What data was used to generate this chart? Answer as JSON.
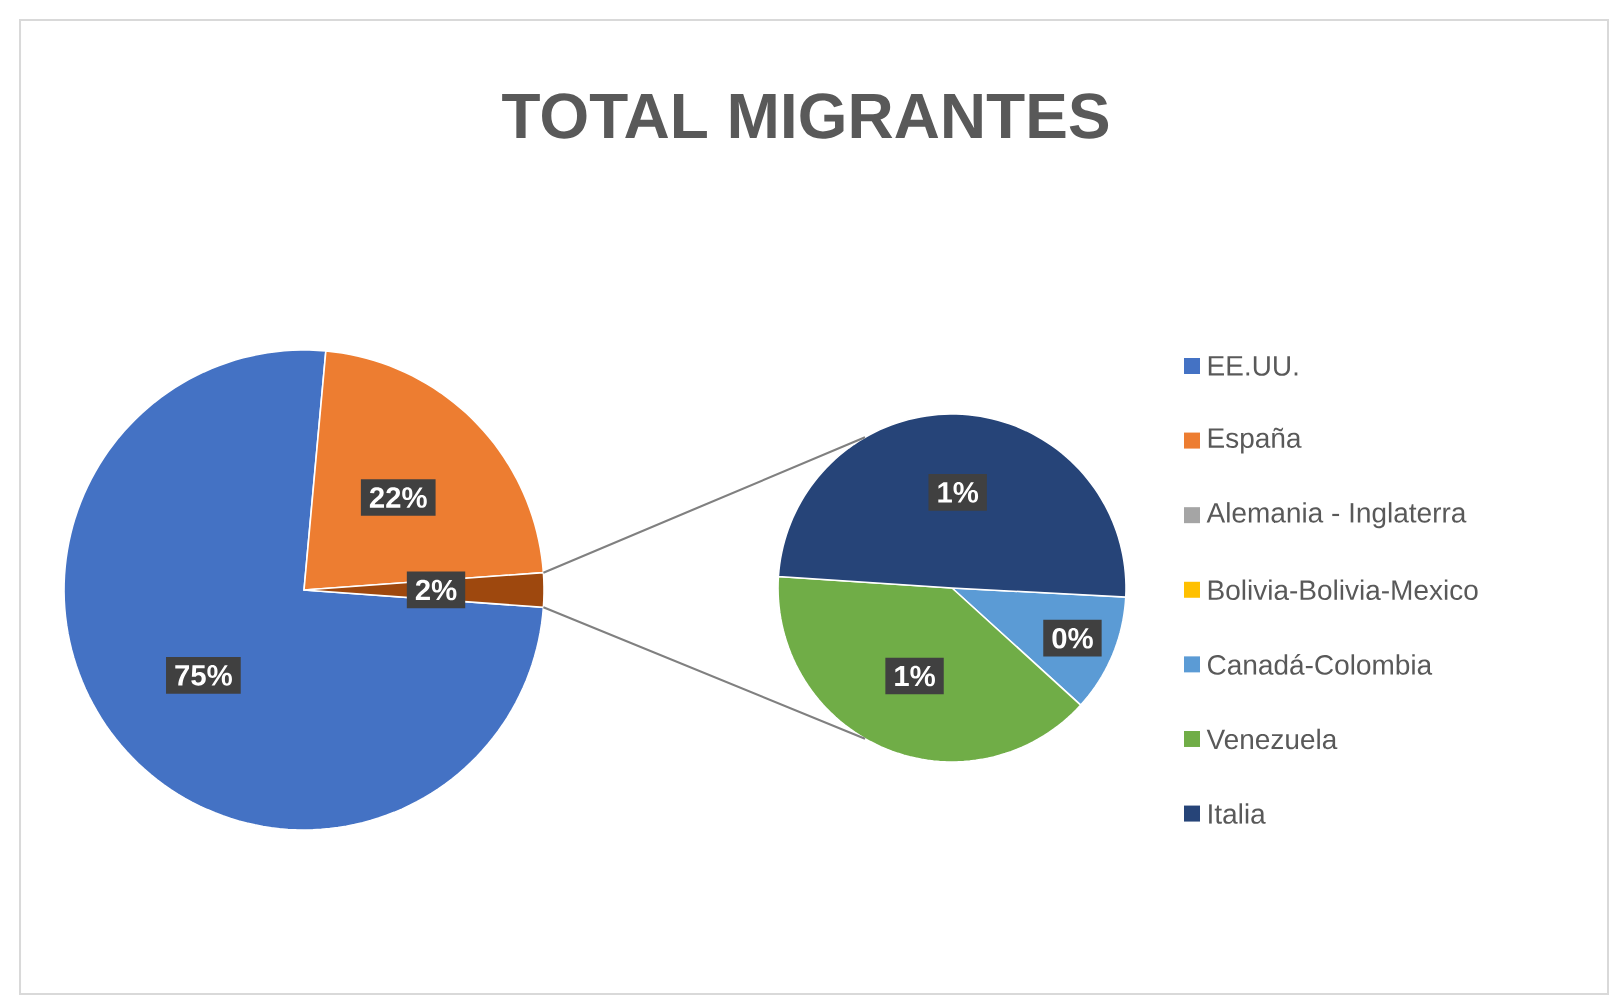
{
  "chart_data": [
    {
      "type": "pie",
      "title": "TOTAL MIGRANTES",
      "categories": [
        "EE.UU.",
        "España",
        null
      ],
      "values": [
        75.3,
        22.4,
        2.3
      ],
      "colors": [
        "#4472c4",
        "#ed7d31",
        "#9e480e"
      ],
      "value_labels": [
        "75%",
        "22%",
        "2%"
      ],
      "legend": "right"
    },
    {
      "type": "pie",
      "categories": [
        "Alemania - Inglaterra",
        "Bolivia-Bolivia-Mexico",
        "Canadá-Colombia",
        "Venezuela",
        "Italia"
      ],
      "values": [
        null,
        null,
        0.25,
        0.9,
        1.14
      ],
      "colors": [
        "#a5a5a5",
        "#ffc000",
        "#5b9bd5",
        "#70ad47",
        "#264478"
      ],
      "value_labels": [
        null,
        null,
        "0%",
        "1%",
        "1%"
      ],
      "legend": "right"
    }
  ]
}
